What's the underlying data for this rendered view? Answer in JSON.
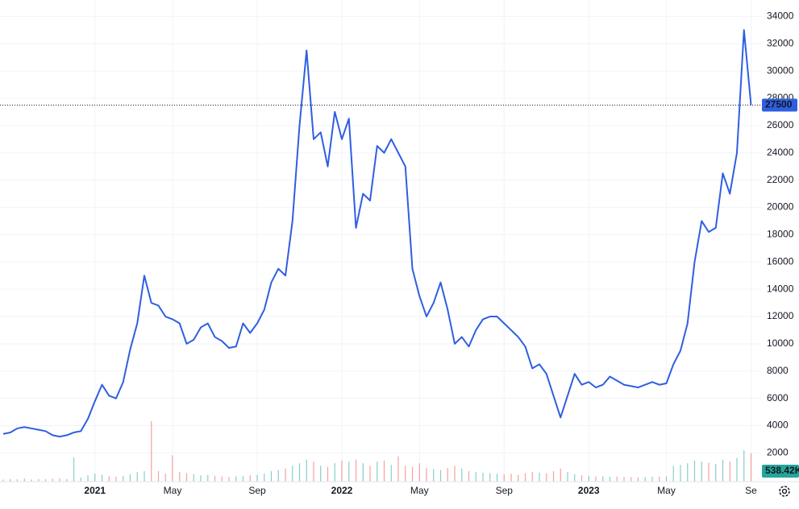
{
  "chart_data": {
    "type": "line",
    "categories": [
      null,
      null,
      null,
      null,
      null,
      null,
      null,
      null,
      null,
      null,
      null,
      null,
      null,
      "2021",
      null,
      null,
      null,
      null,
      null,
      null,
      null,
      null,
      null,
      null,
      "May",
      null,
      null,
      null,
      null,
      null,
      null,
      null,
      null,
      null,
      null,
      null,
      "Sep",
      null,
      null,
      null,
      null,
      null,
      null,
      null,
      null,
      null,
      null,
      null,
      "2022",
      null,
      null,
      null,
      null,
      null,
      null,
      null,
      null,
      null,
      null,
      "May",
      null,
      null,
      null,
      null,
      null,
      null,
      null,
      null,
      null,
      null,
      null,
      "Sep",
      null,
      null,
      null,
      null,
      null,
      null,
      null,
      null,
      null,
      null,
      null,
      "2023",
      null,
      null,
      null,
      null,
      null,
      null,
      null,
      null,
      null,
      null,
      "May",
      null,
      null,
      null,
      null,
      null,
      null,
      null,
      null,
      null,
      null,
      null,
      "Se"
    ],
    "series": [
      {
        "color": "#2f5fe0",
        "values": [
          3400,
          3500,
          3800,
          3900,
          3800,
          3700,
          3600,
          3300,
          3200,
          3300,
          3500,
          3600,
          4500,
          5800,
          7000,
          6200,
          6000,
          7200,
          9600,
          11500,
          15000,
          13000,
          12800,
          12000,
          11800,
          11500,
          10000,
          10300,
          11200,
          11500,
          10500,
          10200,
          9700,
          9800,
          11500,
          10800,
          11500,
          12500,
          14500,
          15500,
          15000,
          19000,
          26000,
          31500,
          25000,
          25500,
          23000,
          27000,
          25000,
          26500,
          18500,
          21000,
          20500,
          24500,
          24000,
          25000,
          24000,
          23000,
          15500,
          13500,
          12000,
          13000,
          14500,
          12500,
          10000,
          10500,
          9800,
          11000,
          11800,
          12000,
          12000,
          11500,
          11000,
          10500,
          9800,
          8200,
          8500,
          7800,
          6200,
          4600,
          6200,
          7800,
          7000,
          7200,
          6800,
          7000,
          7600,
          7300,
          7000,
          6900,
          6800,
          7000,
          7200,
          7000,
          7100,
          8500,
          9500,
          11500,
          16000,
          19000,
          18200,
          18500,
          22500,
          21000,
          24000,
          33000,
          27500
        ]
      }
    ],
    "volume": {
      "up_color": "#26a69a",
      "down_color": "#ef5350",
      "values": [
        40,
        50,
        45,
        60,
        40,
        50,
        45,
        55,
        60,
        50,
        460,
        80,
        120,
        150,
        130,
        100,
        90,
        110,
        140,
        180,
        200,
        1150,
        200,
        150,
        500,
        180,
        160,
        140,
        120,
        130,
        110,
        100,
        90,
        100,
        110,
        120,
        130,
        150,
        200,
        220,
        250,
        300,
        350,
        420,
        380,
        300,
        280,
        350,
        400,
        380,
        420,
        350,
        300,
        380,
        400,
        320,
        480,
        300,
        280,
        350,
        260,
        240,
        220,
        260,
        300,
        250,
        200,
        180,
        170,
        160,
        150,
        140,
        150,
        130,
        160,
        180,
        170,
        160,
        200,
        250,
        180,
        140,
        120,
        110,
        100,
        100,
        90,
        95,
        90,
        85,
        80,
        85,
        90,
        95,
        100,
        300,
        320,
        350,
        400,
        380,
        360,
        340,
        420,
        380,
        450,
        600,
        538.42
      ],
      "value_labels": {
        "106": "538.42K"
      }
    },
    "ylim": [
      -100,
      35200
    ],
    "yticks": [
      2000,
      4000,
      6000,
      8000,
      10000,
      12000,
      14000,
      16000,
      18000,
      20000,
      22000,
      24000,
      26000,
      28000,
      30000,
      32000,
      34000
    ],
    "grid": true
  }
}
